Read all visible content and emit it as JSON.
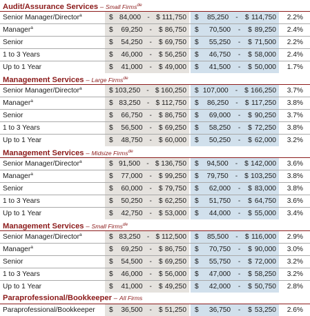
{
  "sections": [
    {
      "title": "Audit/Assurance Services",
      "dash": "–",
      "subtitle": "Small Firms",
      "sup": "de",
      "rows": [
        {
          "title": "Senior Manager/Director",
          "sup": "a",
          "r1_low": "84,000",
          "r1_high": "111,750",
          "r2_low": "85,250",
          "r2_high": "114,750",
          "pct": "2.2%"
        },
        {
          "title": "Manager",
          "sup": "a",
          "r1_low": "69,250",
          "r1_high": "86,750",
          "r2_low": "70,500",
          "r2_high": "89,250",
          "pct": "2.4%"
        },
        {
          "title": "Senior",
          "sup": "",
          "r1_low": "54,250",
          "r1_high": "69,750",
          "r2_low": "55,250",
          "r2_high": "71,500",
          "pct": "2.2%"
        },
        {
          "title": "1 to 3 Years",
          "sup": "",
          "r1_low": "46,000",
          "r1_high": "56,250",
          "r2_low": "46,750",
          "r2_high": "58,000",
          "pct": "2.4%"
        },
        {
          "title": "Up to 1 Year",
          "sup": "",
          "r1_low": "41,000",
          "r1_high": "49,000",
          "r2_low": "41,500",
          "r2_high": "50,000",
          "pct": "1.7%"
        }
      ]
    },
    {
      "title": "Management Services",
      "dash": "–",
      "subtitle": "Large Firms",
      "sup": "de",
      "rows": [
        {
          "title": "Senior Manager/Director",
          "sup": "a",
          "r1_low": "103,250",
          "r1_high": "160,250",
          "r2_low": "107,000",
          "r2_high": "166,250",
          "pct": "3.7%"
        },
        {
          "title": "Manager",
          "sup": "a",
          "r1_low": "83,250",
          "r1_high": "112,750",
          "r2_low": "86,250",
          "r2_high": "117,250",
          "pct": "3.8%"
        },
        {
          "title": "Senior",
          "sup": "",
          "r1_low": "66,750",
          "r1_high": "86,750",
          "r2_low": "69,000",
          "r2_high": "90,250",
          "pct": "3.7%"
        },
        {
          "title": "1 to 3 Years",
          "sup": "",
          "r1_low": "56,500",
          "r1_high": "69,250",
          "r2_low": "58,250",
          "r2_high": "72,250",
          "pct": "3.8%"
        },
        {
          "title": "Up to 1 Year",
          "sup": "",
          "r1_low": "48,750",
          "r1_high": "60,000",
          "r2_low": "50,250",
          "r2_high": "62,000",
          "pct": "3.2%"
        }
      ]
    },
    {
      "title": "Management Services",
      "dash": "–",
      "subtitle": "Midsize Firms",
      "sup": "de",
      "rows": [
        {
          "title": "Senior Manager/Director",
          "sup": "a",
          "r1_low": "91,500",
          "r1_high": "136,750",
          "r2_low": "94,500",
          "r2_high": "142,000",
          "pct": "3.6%"
        },
        {
          "title": "Manager",
          "sup": "a",
          "r1_low": "77,000",
          "r1_high": "99,250",
          "r2_low": "79,750",
          "r2_high": "103,250",
          "pct": "3.8%"
        },
        {
          "title": "Senior",
          "sup": "",
          "r1_low": "60,000",
          "r1_high": "79,750",
          "r2_low": "62,000",
          "r2_high": "83,000",
          "pct": "3.8%"
        },
        {
          "title": "1 to 3 Years",
          "sup": "",
          "r1_low": "50,250",
          "r1_high": "62,250",
          "r2_low": "51,750",
          "r2_high": "64,750",
          "pct": "3.6%"
        },
        {
          "title": "Up to 1 Year",
          "sup": "",
          "r1_low": "42,750",
          "r1_high": "53,000",
          "r2_low": "44,000",
          "r2_high": "55,000",
          "pct": "3.4%"
        }
      ]
    },
    {
      "title": "Management Services",
      "dash": "–",
      "subtitle": "Small Firms",
      "sup": "de",
      "rows": [
        {
          "title": "Senior Manager/Director",
          "sup": "a",
          "r1_low": "83,250",
          "r1_high": "112,500",
          "r2_low": "85,500",
          "r2_high": "116,000",
          "pct": "2.9%"
        },
        {
          "title": "Manager",
          "sup": "a",
          "r1_low": "69,250",
          "r1_high": "86,750",
          "r2_low": "70,750",
          "r2_high": "90,000",
          "pct": "3.0%"
        },
        {
          "title": "Senior",
          "sup": "",
          "r1_low": "54,500",
          "r1_high": "69,250",
          "r2_low": "55,750",
          "r2_high": "72,000",
          "pct": "3.2%"
        },
        {
          "title": "1 to 3 Years",
          "sup": "",
          "r1_low": "46,000",
          "r1_high": "56,000",
          "r2_low": "47,000",
          "r2_high": "58,250",
          "pct": "3.2%"
        },
        {
          "title": "Up to 1 Year",
          "sup": "",
          "r1_low": "41,000",
          "r1_high": "49,250",
          "r2_low": "42,000",
          "r2_high": "50,750",
          "pct": "2.8%"
        }
      ]
    },
    {
      "title": "Paraprofessional/Bookkeeper",
      "dash": "–",
      "subtitle": "All Firms",
      "sup": "",
      "rows": [
        {
          "title": "Paraprofessional/Bookkeeper",
          "sup": "",
          "r1_low": "36,500",
          "r1_high": "51,250",
          "r2_low": "36,750",
          "r2_high": "53,250",
          "pct": "2.6%"
        }
      ]
    }
  ],
  "symbols": {
    "currency": "$",
    "range_sep": "-"
  },
  "colors": {
    "heading": "#8b1a1a",
    "range_col_1": "#e5e2de",
    "range_col_2": "#d1e0ec"
  }
}
